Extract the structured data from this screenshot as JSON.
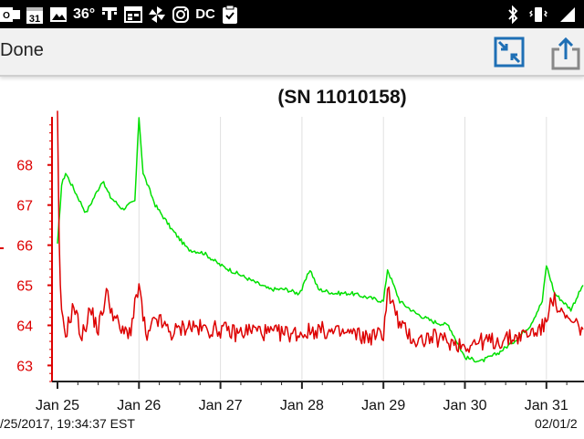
{
  "status_bar": {
    "temperature": "36°",
    "calendar_day": "31",
    "icons": [
      "outlook-icon",
      "calendar-icon",
      "gallery-icon",
      "weather-icon",
      "t-mobile-icon",
      "calendar-alt-icon",
      "pinwheel-icon",
      "instagram-icon",
      "dc-icon",
      "clipboard-icon",
      "bluetooth-icon",
      "vibrate-icon",
      "signal-icon"
    ],
    "dc_label": "DC"
  },
  "toolbar": {
    "done_label": "Done",
    "icons": [
      "fullscreen-exit-icon",
      "share-icon"
    ],
    "accent": "#1e6fb5"
  },
  "chart_data": {
    "type": "line",
    "title": "(SN 11010158)",
    "x": [
      "Jan 25",
      "Jan 26",
      "Jan 27",
      "Jan 28",
      "Jan 29",
      "Jan 30",
      "Jan 31"
    ],
    "xlim": [
      "2017-01-24 22:00",
      "2017-02-01 03:00"
    ],
    "y_ticks": [
      63,
      64,
      65,
      66,
      67,
      68
    ],
    "ylim": [
      62.6,
      69.2
    ],
    "grid": "vertical",
    "series": [
      {
        "color": "#00e000",
        "points": [
          [
            0,
            66.0
          ],
          [
            0.05,
            67.5
          ],
          [
            0.1,
            67.8
          ],
          [
            0.2,
            67.4
          ],
          [
            0.35,
            66.8
          ],
          [
            0.45,
            67.2
          ],
          [
            0.55,
            67.6
          ],
          [
            0.65,
            67.2
          ],
          [
            0.8,
            66.9
          ],
          [
            0.95,
            67.1
          ],
          [
            1.0,
            69.2
          ],
          [
            1.05,
            67.8
          ],
          [
            1.2,
            67.0
          ],
          [
            1.4,
            66.4
          ],
          [
            1.6,
            65.9
          ],
          [
            1.8,
            65.8
          ],
          [
            2.0,
            65.5
          ],
          [
            2.2,
            65.3
          ],
          [
            2.4,
            65.1
          ],
          [
            2.6,
            64.9
          ],
          [
            2.8,
            64.9
          ],
          [
            2.95,
            64.8
          ],
          [
            3.0,
            64.9
          ],
          [
            3.1,
            65.4
          ],
          [
            3.2,
            64.9
          ],
          [
            3.4,
            64.8
          ],
          [
            3.6,
            64.8
          ],
          [
            3.8,
            64.7
          ],
          [
            4.0,
            64.6
          ],
          [
            4.05,
            65.4
          ],
          [
            4.2,
            64.6
          ],
          [
            4.4,
            64.3
          ],
          [
            4.6,
            64.1
          ],
          [
            4.8,
            64.0
          ],
          [
            5.0,
            63.2
          ],
          [
            5.2,
            63.1
          ],
          [
            5.4,
            63.3
          ],
          [
            5.6,
            63.6
          ],
          [
            5.8,
            64.0
          ],
          [
            5.95,
            64.6
          ],
          [
            6.0,
            65.5
          ],
          [
            6.1,
            64.8
          ],
          [
            6.3,
            64.4
          ],
          [
            6.45,
            65.0
          ]
        ]
      },
      {
        "color": "#dd0000",
        "points": [
          [
            0,
            69.2
          ],
          [
            0.02,
            66.0
          ],
          [
            0.05,
            64.2
          ],
          [
            0.1,
            63.8
          ],
          [
            0.2,
            64.5
          ],
          [
            0.3,
            63.7
          ],
          [
            0.4,
            64.4
          ],
          [
            0.5,
            63.9
          ],
          [
            0.6,
            64.8
          ],
          [
            0.7,
            64.2
          ],
          [
            0.8,
            63.8
          ],
          [
            0.9,
            63.9
          ],
          [
            1.0,
            65.0
          ],
          [
            1.05,
            64.2
          ],
          [
            1.1,
            63.6
          ],
          [
            1.2,
            64.2
          ],
          [
            1.4,
            63.8
          ],
          [
            1.6,
            64.0
          ],
          [
            1.8,
            63.9
          ],
          [
            2.0,
            63.9
          ],
          [
            2.2,
            63.8
          ],
          [
            2.4,
            63.9
          ],
          [
            2.6,
            63.8
          ],
          [
            2.8,
            63.8
          ],
          [
            3.0,
            63.8
          ],
          [
            3.2,
            63.9
          ],
          [
            3.4,
            63.8
          ],
          [
            3.6,
            63.8
          ],
          [
            3.8,
            63.7
          ],
          [
            4.0,
            63.8
          ],
          [
            4.05,
            64.9
          ],
          [
            4.2,
            64.0
          ],
          [
            4.4,
            63.6
          ],
          [
            4.6,
            63.7
          ],
          [
            4.8,
            63.6
          ],
          [
            5.0,
            63.5
          ],
          [
            5.2,
            63.6
          ],
          [
            5.4,
            63.6
          ],
          [
            5.6,
            63.7
          ],
          [
            5.8,
            63.8
          ],
          [
            6.0,
            64.0
          ],
          [
            6.05,
            64.8
          ],
          [
            6.2,
            64.2
          ],
          [
            6.45,
            63.9
          ]
        ]
      }
    ]
  },
  "footer": {
    "left_text": "/25/2017, 19:34:37 EST",
    "right_text": "02/01/2"
  }
}
